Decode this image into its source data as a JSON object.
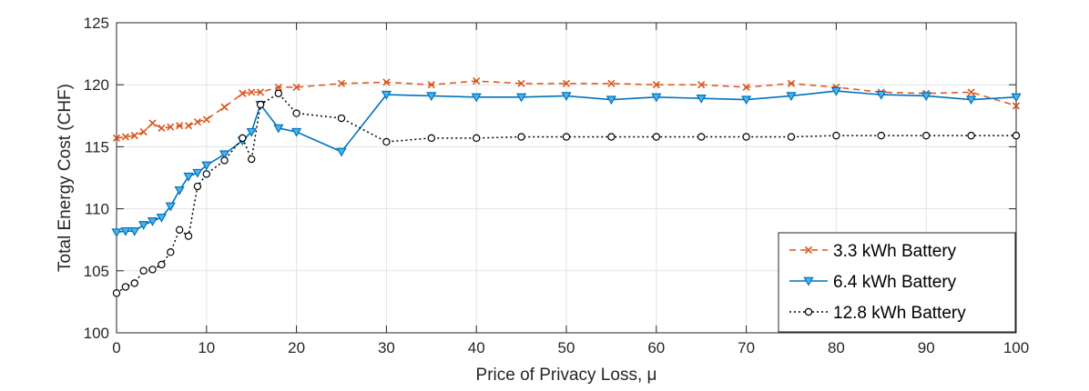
{
  "chart_data": {
    "type": "line",
    "title": "",
    "xlabel": "Price of Privacy Loss, μ",
    "ylabel": "Total Energy Cost (CHF)",
    "xlim": [
      0,
      100
    ],
    "ylim": [
      100,
      125
    ],
    "xticks": [
      "0",
      "10",
      "20",
      "30",
      "40",
      "50",
      "60",
      "70",
      "80",
      "90",
      "100"
    ],
    "yticks": [
      "100",
      "105",
      "110",
      "115",
      "120",
      "125"
    ],
    "grid": true,
    "legend_position": "bottom-right",
    "series": [
      {
        "name": "3.3 kWh Battery",
        "color": "#D95319",
        "line_style": "dashed",
        "marker": "x",
        "x": [
          0,
          1,
          2,
          3,
          4,
          5,
          6,
          7,
          8,
          9,
          10,
          12,
          14,
          15,
          16,
          18,
          20,
          25,
          30,
          35,
          40,
          45,
          50,
          55,
          60,
          65,
          70,
          75,
          80,
          85,
          90,
          95,
          100
        ],
        "y": [
          115.7,
          115.8,
          115.9,
          116.2,
          116.9,
          116.5,
          116.6,
          116.7,
          116.7,
          117.0,
          117.2,
          118.2,
          119.3,
          119.4,
          119.4,
          119.8,
          119.8,
          120.1,
          120.2,
          120.0,
          120.3,
          120.1,
          120.1,
          120.1,
          120.0,
          120.0,
          119.8,
          120.1,
          119.8,
          119.4,
          119.3,
          119.4,
          118.3
        ]
      },
      {
        "name": "6.4 kWh Battery",
        "color": "#0072BD",
        "line_style": "solid",
        "marker": "triangle-down",
        "x": [
          0,
          1,
          2,
          3,
          4,
          5,
          6,
          7,
          8,
          9,
          10,
          12,
          14,
          15,
          16,
          18,
          20,
          25,
          30,
          35,
          40,
          45,
          50,
          55,
          60,
          65,
          70,
          75,
          80,
          85,
          90,
          95,
          100
        ],
        "y": [
          108.1,
          108.2,
          108.2,
          108.7,
          109.0,
          109.3,
          110.2,
          111.5,
          112.6,
          112.9,
          113.5,
          114.4,
          115.5,
          116.2,
          118.4,
          116.5,
          116.2,
          114.6,
          119.2,
          119.1,
          119.0,
          119.0,
          119.1,
          118.8,
          119.0,
          118.9,
          118.8,
          119.1,
          119.5,
          119.2,
          119.1,
          118.8,
          119.0
        ]
      },
      {
        "name": "12.8 kWh Battery",
        "color": "#000000",
        "line_style": "dotted",
        "marker": "circle",
        "x": [
          0,
          1,
          2,
          3,
          4,
          5,
          6,
          7,
          8,
          9,
          10,
          12,
          14,
          15,
          16,
          18,
          20,
          25,
          30,
          35,
          40,
          45,
          50,
          55,
          60,
          65,
          70,
          75,
          80,
          85,
          90,
          95,
          100
        ],
        "y": [
          103.2,
          103.7,
          104.0,
          105.0,
          105.1,
          105.5,
          106.5,
          108.3,
          107.8,
          111.8,
          112.8,
          113.9,
          115.7,
          114.0,
          118.4,
          119.3,
          117.7,
          117.3,
          115.4,
          115.7,
          115.7,
          115.8,
          115.8,
          115.8,
          115.8,
          115.8,
          115.8,
          115.8,
          115.9,
          115.9,
          115.9,
          115.9,
          115.9
        ]
      }
    ]
  }
}
